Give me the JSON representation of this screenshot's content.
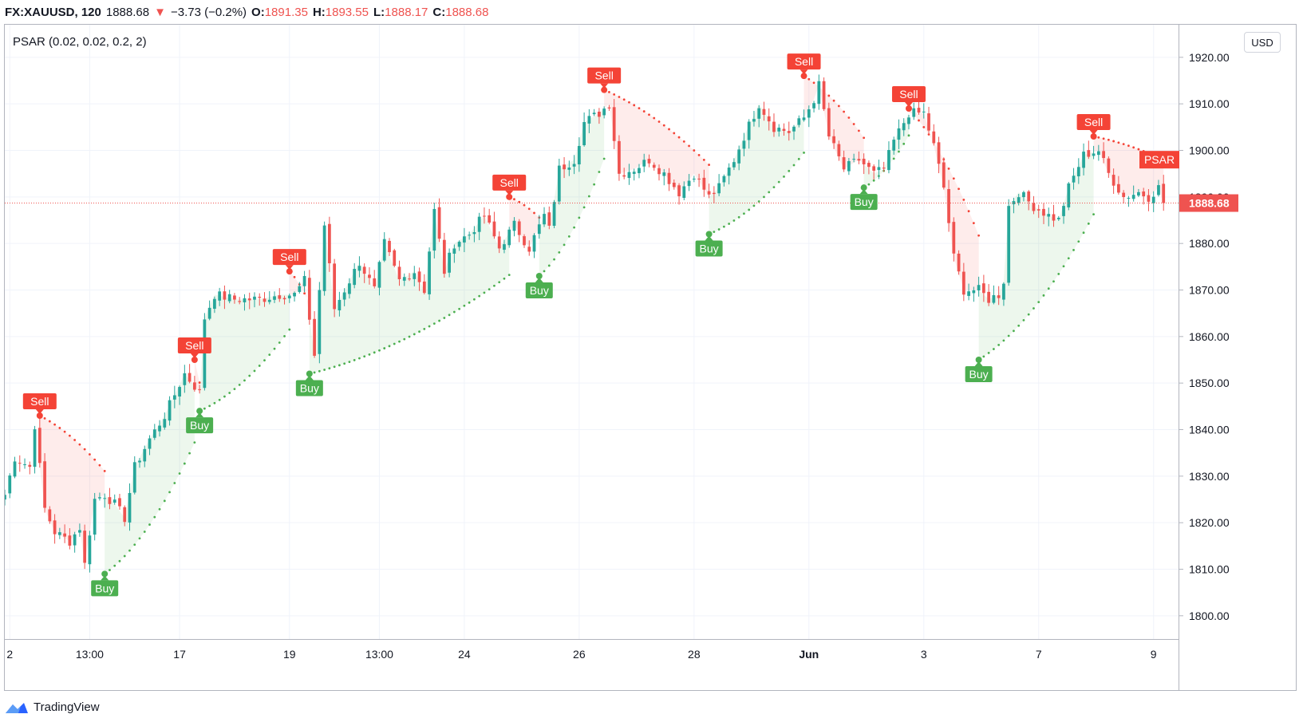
{
  "header": {
    "symbol": "FX:XAUUSD, 120",
    "last": "1888.68",
    "change": "−3.73 (−0.2%)",
    "open_label": "O:",
    "open": "1891.35",
    "high_label": "H:",
    "high": "1893.55",
    "low_label": "L:",
    "low": "1888.17",
    "close_label": "C:",
    "close": "1888.68"
  },
  "indicator_label": "PSAR (0.02, 0.02, 0.2, 2)",
  "currency_label": "USD",
  "footer": {
    "brand": "TradingView",
    "logo_icon": "tradingview-logo-icon"
  },
  "colors": {
    "up": "#26a69a",
    "down": "#ef5350",
    "buy": "#4caf50",
    "sell": "#f44336"
  },
  "chart_data": {
    "type": "candlestick",
    "ylim": [
      1795,
      1927
    ],
    "yticks": [
      1800,
      1810,
      1820,
      1830,
      1840,
      1850,
      1860,
      1870,
      1880,
      1890,
      1900,
      1910,
      1920
    ],
    "ytick_labels": [
      "1800.00",
      "1810.00",
      "1820.00",
      "1830.00",
      "1840.00",
      "1850.00",
      "1860.00",
      "1870.00",
      "1880.00",
      "1890.00",
      "1900.00",
      "1910.00",
      "1920.00"
    ],
    "xlim": [
      0,
      235
    ],
    "xticks": [
      {
        "x": 1,
        "label": "2"
      },
      {
        "x": 17,
        "label": "13:00"
      },
      {
        "x": 35,
        "label": "17"
      },
      {
        "x": 57,
        "label": "19"
      },
      {
        "x": 75,
        "label": "13:00"
      },
      {
        "x": 92,
        "label": "24"
      },
      {
        "x": 115,
        "label": "26"
      },
      {
        "x": 138,
        "label": "28"
      },
      {
        "x": 161,
        "label": "Jun",
        "bold": true
      },
      {
        "x": 184,
        "label": "3"
      },
      {
        "x": 207,
        "label": "7"
      },
      {
        "x": 230,
        "label": "9"
      }
    ],
    "last_price": 1888.68,
    "last_price_label": "1888.68",
    "psar_tag": "PSAR",
    "psar_tag_value": 1898,
    "anchors": [
      [
        0,
        1826
      ],
      [
        2,
        1834
      ],
      [
        5,
        1832
      ],
      [
        6,
        1841
      ],
      [
        8,
        1823
      ],
      [
        10,
        1818
      ],
      [
        13,
        1816
      ],
      [
        15,
        1819
      ],
      [
        16,
        1811
      ],
      [
        18,
        1825
      ],
      [
        20,
        1826
      ],
      [
        22,
        1824
      ],
      [
        24,
        1821
      ],
      [
        26,
        1832
      ],
      [
        29,
        1838
      ],
      [
        32,
        1843
      ],
      [
        36,
        1852
      ],
      [
        39,
        1848
      ],
      [
        40,
        1864
      ],
      [
        42,
        1869
      ],
      [
        46,
        1868
      ],
      [
        51,
        1868
      ],
      [
        55,
        1869
      ],
      [
        58,
        1869
      ],
      [
        60,
        1872
      ],
      [
        62,
        1856
      ],
      [
        64,
        1884
      ],
      [
        66,
        1866
      ],
      [
        68,
        1870
      ],
      [
        71,
        1876
      ],
      [
        74,
        1870
      ],
      [
        76,
        1880
      ],
      [
        79,
        1872
      ],
      [
        82,
        1874
      ],
      [
        84,
        1870
      ],
      [
        86,
        1887
      ],
      [
        88,
        1874
      ],
      [
        90,
        1880
      ],
      [
        93,
        1882
      ],
      [
        96,
        1886
      ],
      [
        99,
        1879
      ],
      [
        102,
        1884
      ],
      [
        105,
        1879
      ],
      [
        108,
        1886
      ],
      [
        109,
        1883
      ],
      [
        111,
        1896
      ],
      [
        114,
        1898
      ],
      [
        116,
        1906
      ],
      [
        119,
        1908
      ],
      [
        121,
        1910
      ],
      [
        123,
        1895
      ],
      [
        126,
        1896
      ],
      [
        129,
        1898
      ],
      [
        132,
        1895
      ],
      [
        135,
        1891
      ],
      [
        138,
        1895
      ],
      [
        141,
        1890
      ],
      [
        143,
        1892
      ],
      [
        146,
        1898
      ],
      [
        148,
        1903
      ],
      [
        151,
        1910
      ],
      [
        154,
        1905
      ],
      [
        157,
        1904
      ],
      [
        160,
        1907
      ],
      [
        162,
        1911
      ],
      [
        163,
        1914
      ],
      [
        165,
        1903
      ],
      [
        168,
        1896
      ],
      [
        171,
        1898
      ],
      [
        174,
        1895
      ],
      [
        176,
        1896
      ],
      [
        178,
        1902
      ],
      [
        181,
        1908
      ],
      [
        184,
        1908
      ],
      [
        186,
        1901
      ],
      [
        188,
        1892
      ],
      [
        190,
        1877
      ],
      [
        192,
        1870
      ],
      [
        195,
        1870
      ],
      [
        197,
        1868
      ],
      [
        199,
        1869
      ],
      [
        200,
        1872
      ],
      [
        201,
        1888
      ],
      [
        203,
        1891
      ],
      [
        206,
        1888
      ],
      [
        209,
        1886
      ],
      [
        211,
        1885
      ],
      [
        213,
        1892
      ],
      [
        216,
        1899
      ],
      [
        219,
        1900
      ],
      [
        221,
        1895
      ],
      [
        224,
        1890
      ],
      [
        227,
        1891
      ],
      [
        229,
        1890
      ],
      [
        231,
        1892
      ],
      [
        232,
        1888.68
      ]
    ],
    "signals": [
      {
        "type": "Sell",
        "x": 7,
        "price": 1843
      },
      {
        "type": "Buy",
        "x": 20,
        "price": 1809
      },
      {
        "type": "Sell",
        "x": 38,
        "price": 1855
      },
      {
        "type": "Buy",
        "x": 39,
        "price": 1844
      },
      {
        "type": "Sell",
        "x": 57,
        "price": 1874
      },
      {
        "type": "Buy",
        "x": 61,
        "price": 1852
      },
      {
        "type": "Sell",
        "x": 101,
        "price": 1890
      },
      {
        "type": "Buy",
        "x": 107,
        "price": 1873
      },
      {
        "type": "Sell",
        "x": 120,
        "price": 1913
      },
      {
        "type": "Buy",
        "x": 141,
        "price": 1882
      },
      {
        "type": "Sell",
        "x": 160,
        "price": 1916
      },
      {
        "type": "Buy",
        "x": 172,
        "price": 1892
      },
      {
        "type": "Sell",
        "x": 181,
        "price": 1909
      },
      {
        "type": "Buy",
        "x": 195,
        "price": 1855
      },
      {
        "type": "Sell",
        "x": 218,
        "price": 1903
      }
    ]
  }
}
